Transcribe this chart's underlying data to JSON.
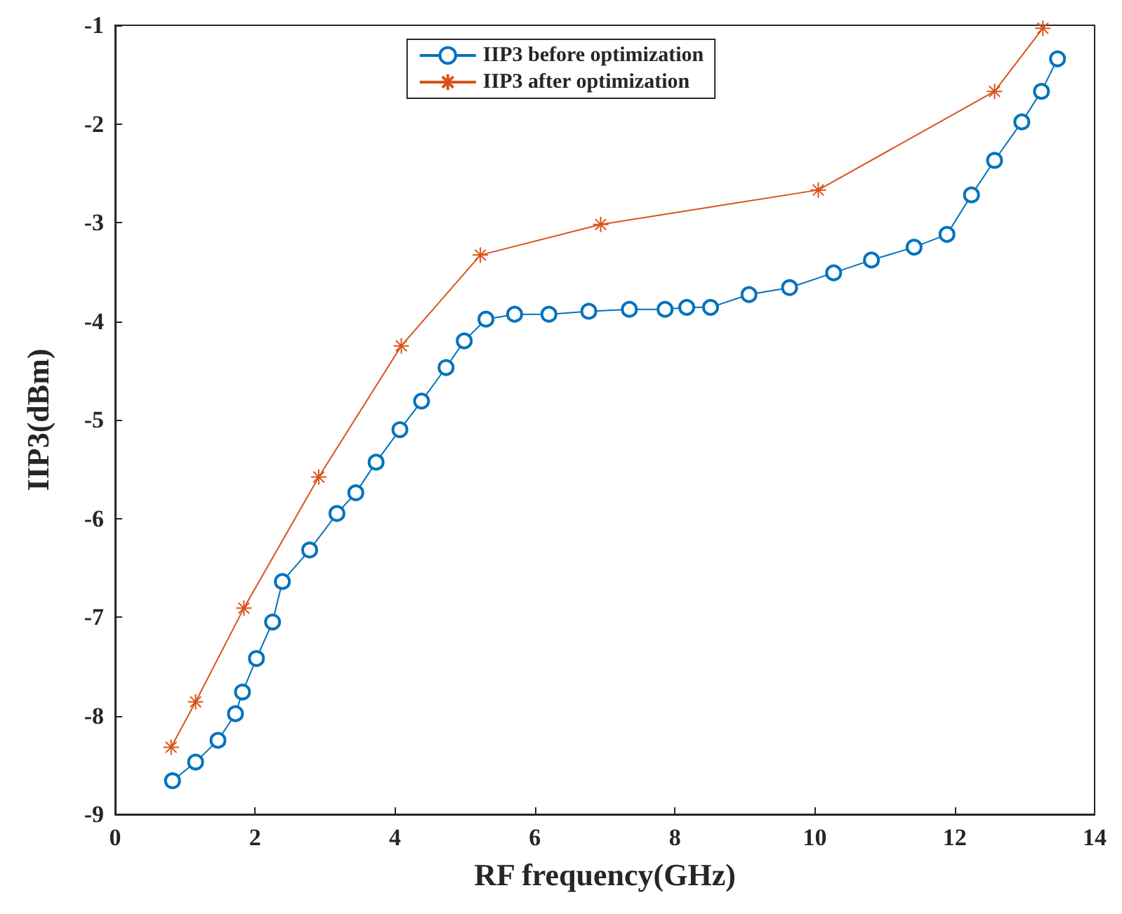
{
  "chart_data": {
    "type": "line",
    "xlabel": "RF frequency(GHz)",
    "ylabel": "IIP3(dBm)",
    "xlim": [
      0,
      14
    ],
    "xticks": [
      0,
      2,
      4,
      6,
      8,
      10,
      12,
      14
    ],
    "ylim": [
      -9,
      -1
    ],
    "yticks": [
      -9,
      -8,
      -7,
      -6,
      -5,
      -4,
      -3,
      -2,
      -1
    ],
    "grid": false,
    "legend": "top",
    "line_style": "solid",
    "series": [
      {
        "name": "IIP3 before optimization",
        "color": "#0072bd",
        "marker": "circle",
        "x": [
          0.82,
          1.15,
          1.47,
          1.72,
          1.82,
          2.02,
          2.25,
          2.39,
          2.78,
          3.17,
          3.44,
          3.73,
          4.07,
          4.38,
          4.73,
          4.99,
          5.3,
          5.71,
          6.2,
          6.77,
          7.35,
          7.86,
          8.17,
          8.51,
          9.06,
          9.64,
          10.27,
          10.81,
          11.42,
          11.89,
          12.24,
          12.57,
          12.96,
          13.24,
          13.47
        ],
        "values": [
          -8.66,
          -8.47,
          -8.25,
          -7.98,
          -7.76,
          -7.42,
          -7.05,
          -6.64,
          -6.32,
          -5.95,
          -5.74,
          -5.43,
          -5.1,
          -4.81,
          -4.47,
          -4.2,
          -3.98,
          -3.93,
          -3.93,
          -3.9,
          -3.88,
          -3.88,
          -3.86,
          -3.86,
          -3.73,
          -3.66,
          -3.51,
          -3.38,
          -3.25,
          -3.12,
          -2.72,
          -2.37,
          -1.98,
          -1.67,
          -1.34
        ]
      },
      {
        "name": "IIP3 after optimization",
        "color": "#d95319",
        "marker": "cross",
        "x": [
          0.8,
          1.15,
          1.84,
          2.91,
          4.09,
          5.22,
          6.94,
          10.05,
          12.57,
          13.26
        ],
        "values": [
          -8.32,
          -7.86,
          -6.91,
          -5.58,
          -4.25,
          -3.33,
          -3.02,
          -2.67,
          -1.67,
          -1.03
        ]
      }
    ]
  }
}
